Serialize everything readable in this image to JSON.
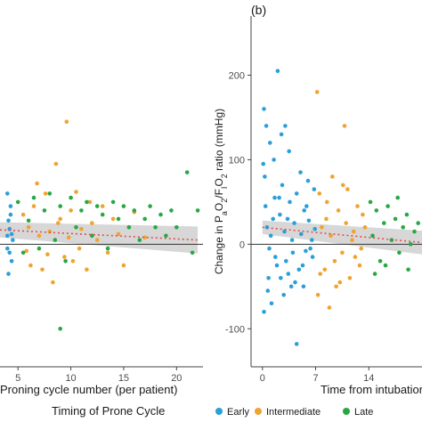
{
  "figure": {
    "legend": {
      "title": "Timing of Prone Cycle",
      "entries": [
        {
          "label": "Early",
          "color": "#2b9fd9"
        },
        {
          "label": "Intermediate",
          "color": "#f0a330"
        },
        {
          "label": "Late",
          "color": "#27a845"
        }
      ]
    }
  },
  "chart_data": [
    {
      "type": "scatter",
      "panel_label": "",
      "xlabel": "Proning cycle number (per patient)",
      "ylabel": "",
      "xticks": [
        5,
        10,
        15,
        20
      ],
      "xlim": [
        3.3,
        22.5
      ],
      "ylim": [
        -145,
        270
      ],
      "hline": 0,
      "trend": {
        "style": "dotted",
        "color": "#e05050",
        "band_color": "#d0d0d0",
        "x": [
          3.3,
          22
        ],
        "y": [
          17,
          5
        ],
        "band_halfwidth": [
          9,
          16
        ]
      },
      "series": [
        {
          "name": "Early",
          "color": "#2b9fd9",
          "points": [
            [
              4.0,
              10
            ],
            [
              4.1,
              28
            ],
            [
              4.2,
              -10
            ],
            [
              4.3,
              45
            ],
            [
              4.0,
              60
            ],
            [
              4.4,
              -20
            ],
            [
              4.2,
              18
            ],
            [
              4.5,
              5
            ],
            [
              4.1,
              -35
            ],
            [
              4.3,
              35
            ],
            [
              4.4,
              12
            ],
            [
              4.0,
              -5
            ]
          ]
        },
        {
          "name": "Intermediate",
          "color": "#f0a330",
          "points": [
            [
              6,
              20
            ],
            [
              6.2,
              -25
            ],
            [
              6.5,
              45
            ],
            [
              7,
              10
            ],
            [
              7.3,
              -30
            ],
            [
              7.6,
              60
            ],
            [
              8,
              15
            ],
            [
              8.3,
              -45
            ],
            [
              8.6,
              95
            ],
            [
              9,
              30
            ],
            [
              9.4,
              -15
            ],
            [
              9.6,
              145
            ],
            [
              9.8,
              8
            ],
            [
              10,
              40
            ],
            [
              10.2,
              -20
            ],
            [
              10.5,
              62
            ],
            [
              11,
              18
            ],
            [
              11.5,
              -30
            ],
            [
              12,
              25
            ],
            [
              12.5,
              5
            ],
            [
              13,
              45
            ],
            [
              13.5,
              -10
            ],
            [
              14,
              30
            ],
            [
              14.5,
              12
            ],
            [
              15,
              -25
            ],
            [
              15.5,
              20
            ],
            [
              16,
              38
            ],
            [
              17,
              8
            ],
            [
              5.5,
              35
            ],
            [
              5.8,
              -8
            ],
            [
              6.8,
              72
            ],
            [
              7.8,
              -12
            ],
            [
              8.8,
              25
            ],
            [
              10.8,
              -5
            ],
            [
              11.8,
              50
            ]
          ]
        },
        {
          "name": "Late",
          "color": "#27a845",
          "points": [
            [
              5,
              50
            ],
            [
              5.5,
              -10
            ],
            [
              6,
              28
            ],
            [
              6.5,
              55
            ],
            [
              7,
              -5
            ],
            [
              7.5,
              40
            ],
            [
              8,
              60
            ],
            [
              8.5,
              5
            ],
            [
              9,
              45
            ],
            [
              9.5,
              -20
            ],
            [
              10,
              55
            ],
            [
              10.5,
              20
            ],
            [
              11,
              40
            ],
            [
              11.5,
              50
            ],
            [
              12,
              10
            ],
            [
              12.5,
              45
            ],
            [
              13,
              35
            ],
            [
              13.5,
              -5
            ],
            [
              14,
              50
            ],
            [
              14.5,
              30
            ],
            [
              15,
              45
            ],
            [
              15.5,
              20
            ],
            [
              16,
              40
            ],
            [
              16.5,
              5
            ],
            [
              17,
              30
            ],
            [
              17.5,
              45
            ],
            [
              18,
              20
            ],
            [
              18.5,
              35
            ],
            [
              19,
              10
            ],
            [
              19.5,
              40
            ],
            [
              20,
              20
            ],
            [
              21,
              85
            ],
            [
              21.5,
              -10
            ],
            [
              22,
              40
            ],
            [
              9,
              -100
            ]
          ]
        }
      ]
    },
    {
      "type": "scatter",
      "panel_label": "(b)",
      "xlabel": "Time from intubation (d",
      "ylabel_parts": [
        "Change in P",
        "a",
        "O",
        "2",
        "/F",
        "I",
        "O",
        "2",
        " ratio (mmHg)"
      ],
      "xticks": [
        0,
        7,
        14
      ],
      "xlim": [
        -1.5,
        21
      ],
      "ylim": [
        -145,
        270
      ],
      "yticks": [
        -100,
        0,
        100,
        200
      ],
      "hline": 0,
      "trend": {
        "style": "dotted",
        "color": "#e05050",
        "band_color": "#d0d0d0",
        "x": [
          0,
          21
        ],
        "y": [
          20,
          2
        ],
        "band_halfwidth": [
          8,
          14
        ]
      },
      "series": [
        {
          "name": "Early",
          "color": "#2b9fd9",
          "points": [
            [
              0.2,
              160
            ],
            [
              0.5,
              140
            ],
            [
              0.1,
              95
            ],
            [
              0.3,
              80
            ],
            [
              0.8,
              -40
            ],
            [
              1,
              120
            ],
            [
              1.5,
              100
            ],
            [
              2,
              205
            ],
            [
              2.2,
              55
            ],
            [
              2.5,
              130
            ],
            [
              3,
              140
            ],
            [
              3.3,
              30
            ],
            [
              3.5,
              110
            ],
            [
              4,
              -10
            ],
            [
              4.5,
              60
            ],
            [
              5,
              85
            ],
            [
              5.5,
              40
            ],
            [
              6,
              75
            ],
            [
              6.3,
              -5
            ],
            [
              6.8,
              65
            ],
            [
              0.2,
              -80
            ],
            [
              1.2,
              -70
            ],
            [
              2.8,
              -60
            ],
            [
              3.8,
              -50
            ],
            [
              4.5,
              -118
            ],
            [
              5.3,
              -25
            ],
            [
              0.6,
              20
            ],
            [
              1.1,
              10
            ],
            [
              1.7,
              -15
            ],
            [
              2.3,
              35
            ],
            [
              2.9,
              15
            ],
            [
              3.1,
              -20
            ],
            [
              3.6,
              50
            ],
            [
              4.2,
              25
            ],
            [
              4.8,
              -30
            ],
            [
              5.1,
              12
            ],
            [
              5.7,
              -8
            ],
            [
              6.1,
              28
            ],
            [
              6.5,
              5
            ],
            [
              0.4,
              45
            ],
            [
              0.9,
              -5
            ],
            [
              1.4,
              30
            ],
            [
              1.9,
              -25
            ],
            [
              2.6,
              70
            ],
            [
              3.4,
              -35
            ],
            [
              4.3,
              -45
            ],
            [
              5.8,
              45
            ],
            [
              6.6,
              -15
            ],
            [
              0.7,
              -55
            ],
            [
              1.6,
              55
            ],
            [
              2.4,
              -40
            ],
            [
              3.9,
              5
            ],
            [
              5.4,
              -50
            ],
            [
              6.9,
              18
            ]
          ]
        },
        {
          "name": "Intermediate",
          "color": "#f0a330",
          "points": [
            [
              7.2,
              180
            ],
            [
              7.5,
              60
            ],
            [
              7.8,
              20
            ],
            [
              8.2,
              -30
            ],
            [
              8.5,
              50
            ],
            [
              9,
              10
            ],
            [
              9.5,
              -20
            ],
            [
              10,
              40
            ],
            [
              10.5,
              -10
            ],
            [
              10.8,
              140
            ],
            [
              11,
              25
            ],
            [
              11.5,
              -40
            ],
            [
              12,
              15
            ],
            [
              12.5,
              45
            ],
            [
              13,
              -5
            ],
            [
              13.5,
              20
            ],
            [
              7.3,
              -60
            ],
            [
              8.8,
              -75
            ],
            [
              9.2,
              80
            ],
            [
              10.2,
              -45
            ],
            [
              11.2,
              65
            ],
            [
              12.2,
              -15
            ],
            [
              13.2,
              35
            ],
            [
              7.6,
              -35
            ],
            [
              8.4,
              30
            ],
            [
              9.7,
              -50
            ],
            [
              10.6,
              70
            ],
            [
              11.8,
              5
            ],
            [
              12.8,
              -25
            ]
          ]
        },
        {
          "name": "Late",
          "color": "#27a845",
          "points": [
            [
              14.2,
              50
            ],
            [
              14.5,
              10
            ],
            [
              15,
              40
            ],
            [
              15.5,
              -20
            ],
            [
              16,
              25
            ],
            [
              16.5,
              45
            ],
            [
              17,
              5
            ],
            [
              17.5,
              30
            ],
            [
              18,
              -10
            ],
            [
              18.5,
              20
            ],
            [
              19,
              35
            ],
            [
              19.5,
              0
            ],
            [
              20,
              15
            ],
            [
              20.5,
              25
            ],
            [
              14.8,
              -35
            ],
            [
              16.2,
              -25
            ],
            [
              17.8,
              55
            ],
            [
              19.2,
              -30
            ]
          ]
        }
      ]
    }
  ]
}
